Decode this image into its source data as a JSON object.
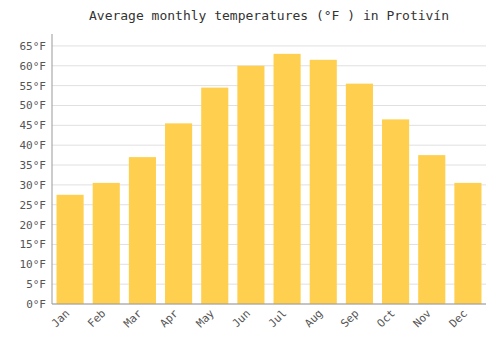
{
  "chart_data": {
    "type": "bar",
    "title": "Average monthly temperatures (°F ) in Protivín",
    "categories": [
      "Jan",
      "Feb",
      "Mar",
      "Apr",
      "May",
      "Jun",
      "Jul",
      "Aug",
      "Sep",
      "Oct",
      "Nov",
      "Dec"
    ],
    "values": [
      27.5,
      30.5,
      37.0,
      45.5,
      54.5,
      60.0,
      63.0,
      61.5,
      55.5,
      46.5,
      37.5,
      30.5
    ],
    "color": "#FFD050",
    "ylim": [
      0,
      68
    ],
    "yticks": [
      {
        "value": 0,
        "label": "0°F"
      },
      {
        "value": 5,
        "label": "5°F"
      },
      {
        "value": 10,
        "label": "10°F"
      },
      {
        "value": 15,
        "label": "15°F"
      },
      {
        "value": 20,
        "label": "20°F"
      },
      {
        "value": 25,
        "label": "25°F"
      },
      {
        "value": 30,
        "label": "30°F"
      },
      {
        "value": 35,
        "label": "35°F"
      },
      {
        "value": 40,
        "label": "40°F"
      },
      {
        "value": 45,
        "label": "45°F"
      },
      {
        "value": 50,
        "label": "50°F"
      },
      {
        "value": 55,
        "label": "55°F"
      },
      {
        "value": 60,
        "label": "60°F"
      },
      {
        "value": 65,
        "label": "65°F"
      }
    ],
    "grid": true
  }
}
